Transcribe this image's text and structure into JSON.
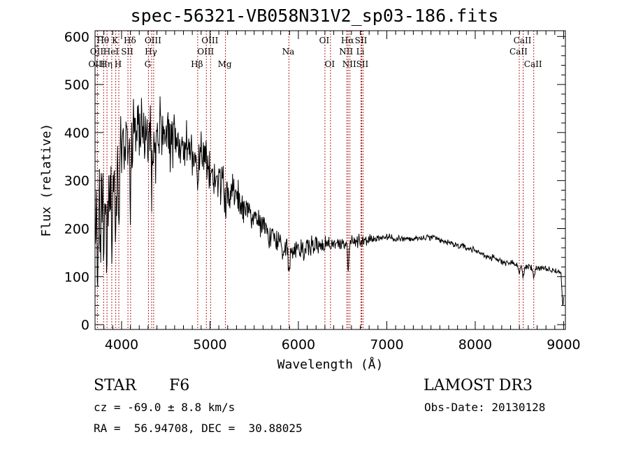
{
  "title": "spec-56321-VB058N31V2_sp03-186.fits",
  "info": {
    "class": "STAR",
    "subclass": "F6",
    "survey": "LAMOST DR3",
    "cz": "cz = -69.0 ± 8.8 km/s",
    "obs_date": "Obs-Date: 20130128",
    "coords": "RA =  56.94708, DEC =  30.88025"
  },
  "chart_data": {
    "type": "line",
    "title": "spec-56321-VB058N31V2_sp03-186.fits",
    "xlabel": "Wavelength (Å)",
    "ylabel": "Flux (relative)",
    "xlim": [
      3700,
      9020
    ],
    "ylim": [
      -10,
      612
    ],
    "xticks": [
      4000,
      5000,
      6000,
      7000,
      8000,
      9000
    ],
    "yticks": [
      0,
      100,
      200,
      300,
      400,
      500,
      600
    ],
    "colors": {
      "spectrum": "#000000",
      "lines": "#b22222",
      "axes": "#000000"
    },
    "continuum": [
      [
        3700,
        300
      ],
      [
        3760,
        290
      ],
      [
        3800,
        300
      ],
      [
        3850,
        305
      ],
      [
        3900,
        330
      ],
      [
        3950,
        345
      ],
      [
        4000,
        370
      ],
      [
        4100,
        395
      ],
      [
        4200,
        405
      ],
      [
        4300,
        410
      ],
      [
        4400,
        410
      ],
      [
        4500,
        405
      ],
      [
        4600,
        390
      ],
      [
        4700,
        375
      ],
      [
        4800,
        360
      ],
      [
        4900,
        345
      ],
      [
        5000,
        325
      ],
      [
        5100,
        300
      ],
      [
        5200,
        280
      ],
      [
        5300,
        265
      ],
      [
        5400,
        245
      ],
      [
        5500,
        225
      ],
      [
        5600,
        205
      ],
      [
        5700,
        185
      ],
      [
        5800,
        170
      ],
      [
        5900,
        160
      ],
      [
        6000,
        160
      ],
      [
        6100,
        162
      ],
      [
        6200,
        165
      ],
      [
        6300,
        168
      ],
      [
        6400,
        170
      ],
      [
        6500,
        170
      ],
      [
        6600,
        172
      ],
      [
        6700,
        175
      ],
      [
        6800,
        178
      ],
      [
        6900,
        180
      ],
      [
        7000,
        182
      ],
      [
        7100,
        180
      ],
      [
        7200,
        178
      ],
      [
        7300,
        178
      ],
      [
        7400,
        180
      ],
      [
        7500,
        182
      ],
      [
        7600,
        175
      ],
      [
        7700,
        170
      ],
      [
        7800,
        165
      ],
      [
        7900,
        160
      ],
      [
        8000,
        155
      ],
      [
        8100,
        145
      ],
      [
        8200,
        138
      ],
      [
        8300,
        132
      ],
      [
        8400,
        128
      ],
      [
        8500,
        125
      ],
      [
        8600,
        120
      ],
      [
        8700,
        118
      ],
      [
        8800,
        115
      ],
      [
        8900,
        112
      ],
      [
        8960,
        110
      ],
      [
        9000,
        110
      ]
    ],
    "features": [
      [
        3700,
        20
      ],
      [
        3712,
        60
      ],
      [
        3730,
        200
      ],
      [
        3760,
        160
      ],
      [
        3800,
        180
      ],
      [
        3835,
        230
      ],
      [
        3890,
        250
      ],
      [
        3933,
        230
      ],
      [
        3968,
        210
      ],
      [
        4102,
        160
      ],
      [
        4340,
        110
      ],
      [
        4383,
        80
      ],
      [
        4861,
        70
      ],
      [
        5175,
        40
      ],
      [
        5893,
        60
      ],
      [
        6563,
        55
      ],
      [
        8498,
        20
      ],
      [
        8542,
        25
      ],
      [
        8662,
        20
      ],
      [
        8990,
        60
      ],
      [
        9000,
        20
      ]
    ],
    "noise": [
      [
        3700,
        90
      ],
      [
        4000,
        70
      ],
      [
        4500,
        55
      ],
      [
        5000,
        35
      ],
      [
        5500,
        28
      ],
      [
        6000,
        22
      ],
      [
        6500,
        14
      ],
      [
        7000,
        7
      ],
      [
        8000,
        6
      ],
      [
        9000,
        6
      ]
    ],
    "line_labels": [
      {
        "label": "Hθ",
        "x": 3797,
        "row": 1
      },
      {
        "label": "OII",
        "x": 3727,
        "row": 2
      },
      {
        "label": "OIII",
        "x": 3727,
        "row": 3
      },
      {
        "label": "Hη",
        "x": 3835,
        "row": 3
      },
      {
        "label": "HeI",
        "x": 3889,
        "row": 2
      },
      {
        "label": "K",
        "x": 3934,
        "row": 1
      },
      {
        "label": "SII",
        "x": 4072,
        "row": 2
      },
      {
        "label": "H",
        "x": 3969,
        "row": 3
      },
      {
        "label": "Hδ",
        "x": 4102,
        "row": 1
      },
      {
        "label": "OIII",
        "x": 4363,
        "row": 1
      },
      {
        "label": "Hγ",
        "x": 4340,
        "row": 2
      },
      {
        "label": "G",
        "x": 4304,
        "row": 3
      },
      {
        "label": "OIII",
        "x": 5007,
        "row": 1
      },
      {
        "label": "OIII",
        "x": 4959,
        "row": 2
      },
      {
        "label": "Hβ",
        "x": 4861,
        "row": 3
      },
      {
        "label": "Mg",
        "x": 5175,
        "row": 3
      },
      {
        "label": "Na",
        "x": 5893,
        "row": 2
      },
      {
        "label": "OI",
        "x": 6300,
        "row": 1
      },
      {
        "label": "OI",
        "x": 6363,
        "row": 3
      },
      {
        "label": "Hα",
        "x": 6563,
        "row": 1
      },
      {
        "label": "NII",
        "x": 6548,
        "row": 2
      },
      {
        "label": "NII",
        "x": 6583,
        "row": 3
      },
      {
        "label": "SII",
        "x": 6716,
        "row": 1
      },
      {
        "label": "Li",
        "x": 6708,
        "row": 2
      },
      {
        "label": "SII",
        "x": 6731,
        "row": 3
      },
      {
        "label": "CaII",
        "x": 8542,
        "row": 1
      },
      {
        "label": "CaII",
        "x": 8498,
        "row": 2
      },
      {
        "label": "CaII",
        "x": 8662,
        "row": 3
      }
    ],
    "line_markers": [
      3727,
      3797,
      3835,
      3889,
      3934,
      3969,
      4072,
      4102,
      4304,
      4340,
      4363,
      4861,
      4959,
      5007,
      5175,
      5893,
      6300,
      6363,
      6548,
      6563,
      6583,
      6708,
      6716,
      6731,
      8498,
      8542,
      8662
    ]
  }
}
